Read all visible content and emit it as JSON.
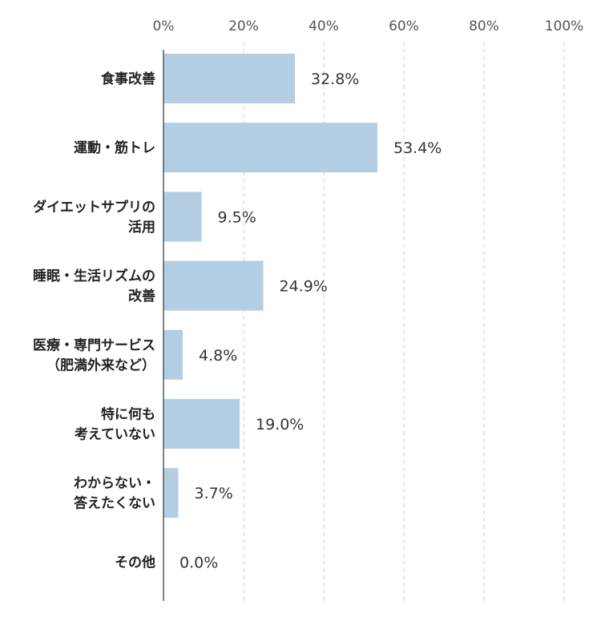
{
  "chart_data": {
    "type": "bar",
    "orientation": "horizontal",
    "categories": [
      [
        "食事改善"
      ],
      [
        "運動・筋トレ"
      ],
      [
        "ダイエットサプリの",
        "活用"
      ],
      [
        "睡眠・生活リズムの",
        "改善"
      ],
      [
        "医療・専門サービス",
        "（肥満外来など）"
      ],
      [
        "特に何も",
        "考えていない"
      ],
      [
        "わからない・",
        "答えたくない"
      ],
      [
        "その他"
      ]
    ],
    "values": [
      32.8,
      53.4,
      9.5,
      24.9,
      4.8,
      19.0,
      3.7,
      0.0
    ],
    "value_labels": [
      "32.8%",
      "53.4%",
      "9.5%",
      "24.9%",
      "4.8%",
      "19.0%",
      "3.7%",
      "0.0%"
    ],
    "xlim": [
      0,
      100
    ],
    "x_ticks": [
      0,
      20,
      40,
      60,
      80,
      100
    ],
    "x_tick_labels": [
      "0%",
      "20%",
      "40%",
      "60%",
      "80%",
      "100%"
    ],
    "title": "",
    "xlabel": "",
    "ylabel": "",
    "grid": true,
    "bar_color": "#b3cde3"
  }
}
